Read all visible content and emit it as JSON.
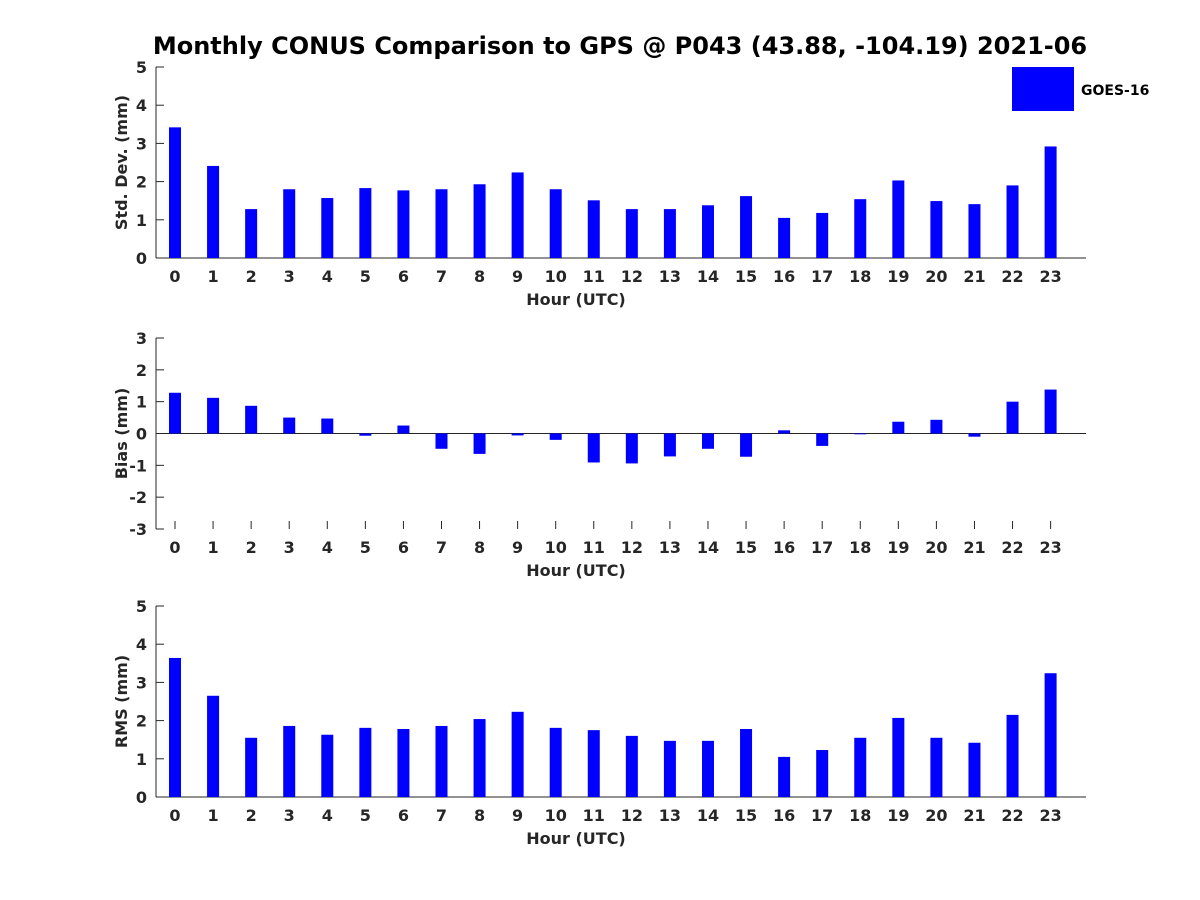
{
  "title": "Monthly CONUS Comparison to GPS @ P043 (43.88, -104.19) 2021-06",
  "colors": {
    "bar": "#0000ff",
    "axis": "#262626",
    "background": "#ffffff"
  },
  "legend": {
    "label": "GOES-16",
    "placement": "top-right"
  },
  "chart_data": [
    {
      "type": "bar",
      "xlabel": "Hour (UTC)",
      "ylabel": "Std. Dev. (mm)",
      "ylim": [
        0,
        5
      ],
      "yticks": [
        0,
        1,
        2,
        3,
        4,
        5
      ],
      "categories": [
        "0",
        "1",
        "2",
        "3",
        "4",
        "5",
        "6",
        "7",
        "8",
        "9",
        "10",
        "11",
        "12",
        "13",
        "14",
        "15",
        "16",
        "17",
        "18",
        "19",
        "20",
        "21",
        "22",
        "23"
      ],
      "series": [
        {
          "name": "GOES-16",
          "values": [
            3.42,
            2.41,
            1.28,
            1.8,
            1.57,
            1.83,
            1.77,
            1.8,
            1.93,
            2.24,
            1.8,
            1.51,
            1.28,
            1.28,
            1.38,
            1.62,
            1.05,
            1.18,
            1.54,
            2.03,
            1.49,
            1.41,
            1.9,
            2.92
          ]
        }
      ]
    },
    {
      "type": "bar",
      "xlabel": "Hour (UTC)",
      "ylabel": "Bias (mm)",
      "ylim": [
        -3,
        3
      ],
      "yticks": [
        -3,
        -2,
        -1,
        0,
        1,
        2,
        3
      ],
      "categories": [
        "0",
        "1",
        "2",
        "3",
        "4",
        "5",
        "6",
        "7",
        "8",
        "9",
        "10",
        "11",
        "12",
        "13",
        "14",
        "15",
        "16",
        "17",
        "18",
        "19",
        "20",
        "21",
        "22",
        "23"
      ],
      "series": [
        {
          "name": "GOES-16",
          "values": [
            1.28,
            1.12,
            0.87,
            0.5,
            0.47,
            -0.07,
            0.25,
            -0.48,
            -0.64,
            -0.06,
            -0.2,
            -0.91,
            -0.94,
            -0.72,
            -0.48,
            -0.73,
            0.1,
            -0.39,
            -0.01,
            0.37,
            0.43,
            -0.1,
            1.0,
            1.38
          ]
        }
      ]
    },
    {
      "type": "bar",
      "xlabel": "Hour (UTC)",
      "ylabel": "RMS (mm)",
      "ylim": [
        0,
        5
      ],
      "yticks": [
        0,
        1,
        2,
        3,
        4,
        5
      ],
      "categories": [
        "0",
        "1",
        "2",
        "3",
        "4",
        "5",
        "6",
        "7",
        "8",
        "9",
        "10",
        "11",
        "12",
        "13",
        "14",
        "15",
        "16",
        "17",
        "18",
        "19",
        "20",
        "21",
        "22",
        "23"
      ],
      "series": [
        {
          "name": "GOES-16",
          "values": [
            3.64,
            2.65,
            1.55,
            1.86,
            1.63,
            1.81,
            1.78,
            1.86,
            2.04,
            2.23,
            1.81,
            1.75,
            1.6,
            1.47,
            1.47,
            1.78,
            1.05,
            1.23,
            1.55,
            2.07,
            1.55,
            1.42,
            2.15,
            3.24
          ]
        }
      ]
    }
  ]
}
